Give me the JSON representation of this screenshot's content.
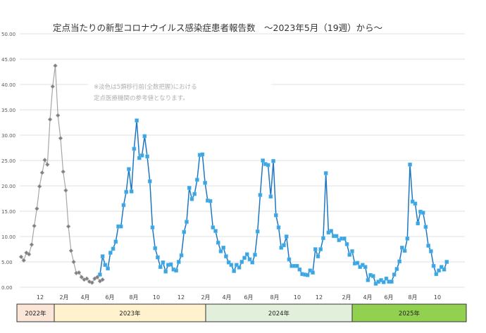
{
  "chart_data": {
    "type": "line",
    "title": "定点当たりの新型コロナウイルス感染症患者報告数　～2023年5月（19週）から～",
    "annotation": [
      "※淡色は5類移行前(全数把握)における",
      "定点医療機関の参考値となります。"
    ],
    "ylim": [
      0,
      50
    ],
    "yticks": [
      "0.00",
      "5.00",
      "10.00",
      "15.00",
      "20.00",
      "25.00",
      "30.00",
      "35.00",
      "40.00",
      "45.00",
      "50.00"
    ],
    "grid": true,
    "x_unit": "week",
    "xticks": [
      "12",
      "2月",
      "4月",
      "6月",
      "8月",
      "10",
      "12",
      "2月",
      "4月",
      "6月",
      "8月",
      "10",
      "12",
      "2月",
      "4月",
      "6月",
      "8月",
      "10"
    ],
    "year_bands": [
      {
        "label": "2022年",
        "color": "#fbe5d6"
      },
      {
        "label": "2023年",
        "color": "#fff2cc"
      },
      {
        "label": "2024年",
        "color": "#e2efda"
      },
      {
        "label": "2025年",
        "color": "#92d050"
      }
    ],
    "series": [
      {
        "start_week": "2022-W41",
        "color": "#a6a6a6",
        "marker_color": "#7f7f7f",
        "marker": "diamond",
        "values": [
          6.0,
          5.3,
          6.8,
          6.5,
          8.4,
          12.1,
          15.5,
          19.9,
          22.6,
          25.1,
          24.2,
          33.1,
          39.6,
          43.7,
          33.9,
          29.4,
          22.8,
          19.1,
          12.0,
          7.2,
          5.0,
          2.8,
          2.9,
          2.0,
          1.5,
          1.7,
          1.1,
          0.9,
          1.7,
          2.0,
          1.2,
          1.5
        ]
      },
      {
        "start_week": "2023-W19",
        "color": "#1f77c4",
        "marker_color": "#3fa3e0",
        "marker": "square",
        "values": [
          2.5,
          6.1,
          4.4,
          3.7,
          6.8,
          7.6,
          9.0,
          12.0,
          12.0,
          16.2,
          18.8,
          23.3,
          18.9,
          27.3,
          32.9,
          25.5,
          26.0,
          29.8,
          25.8,
          20.9,
          11.8,
          7.7,
          5.9,
          4.0,
          4.9,
          3.1,
          4.4,
          4.5,
          3.5,
          3.3,
          5.0,
          6.3,
          10.9,
          12.9,
          19.6,
          17.4,
          18.4,
          21.2,
          26.1,
          26.2,
          20.6,
          17.1,
          17.0,
          11.8,
          11.1,
          8.8,
          7.1,
          7.8,
          6.1,
          4.9,
          4.4,
          3.2,
          4.4,
          3.9,
          5.0,
          5.8,
          6.5,
          5.5,
          4.9,
          6.4,
          11.0,
          18.2,
          25.0,
          24.3,
          24.1,
          17.9,
          24.9,
          14.2,
          11.8,
          7.8,
          8.3,
          10.0,
          5.5,
          4.2,
          4.2,
          4.2,
          3.5,
          2.6,
          2.5,
          2.4,
          3.3,
          2.9,
          7.5,
          6.1,
          7.5,
          9.7,
          22.5,
          10.8,
          11.1,
          10.1,
          10.1,
          9.3,
          9.6,
          9.6,
          8.5,
          6.4,
          7.1,
          4.7,
          4.8,
          4.0,
          4.4,
          4.0,
          1.4,
          2.4,
          2.2,
          0.7,
          1.1,
          1.4,
          1.0,
          1.7,
          1.1,
          1.1,
          2.5,
          3.6,
          5.1,
          7.8,
          7.2,
          9.6,
          24.2,
          16.9,
          16.5,
          12.6,
          14.9,
          14.7,
          11.9,
          8.2,
          7.1,
          4.2,
          2.6,
          3.3,
          4.0,
          3.5,
          5.0
        ]
      }
    ]
  }
}
